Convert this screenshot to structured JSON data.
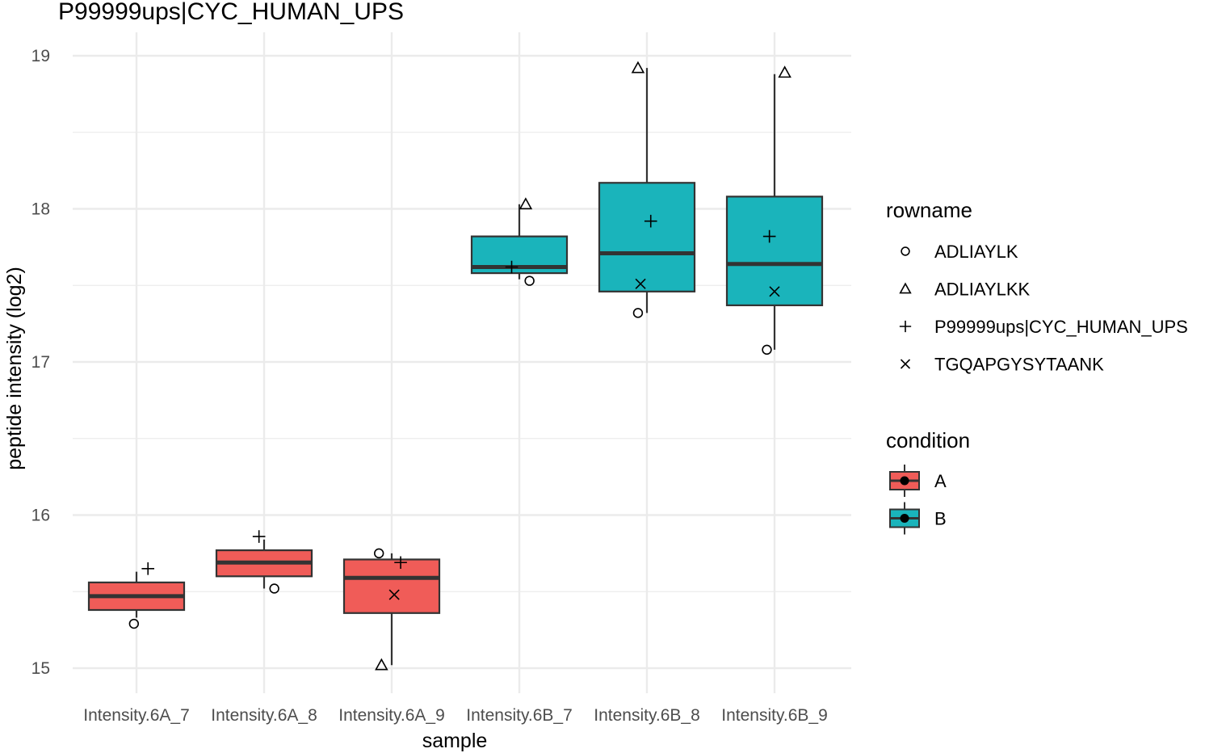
{
  "chart_data": {
    "type": "boxplot",
    "title": "P99999ups|CYC_HUMAN_UPS",
    "xlabel": "sample",
    "ylabel": "peptide intensity (log2)",
    "ylim": [
      14.77,
      19.3
    ],
    "yticks": [
      15,
      16,
      17,
      18,
      19
    ],
    "grid": true,
    "categories": [
      "Intensity.6A_7",
      "Intensity.6A_8",
      "Intensity.6A_9",
      "Intensity.6B_7",
      "Intensity.6B_8",
      "Intensity.6B_9"
    ],
    "boxes": [
      {
        "condition": "A",
        "min": 15.33,
        "q1": 15.38,
        "median": 15.47,
        "q3": 15.56,
        "max": 15.63
      },
      {
        "condition": "A",
        "min": 15.52,
        "q1": 15.6,
        "median": 15.69,
        "q3": 15.77,
        "max": 15.84
      },
      {
        "condition": "A",
        "min": 15.02,
        "q1": 15.36,
        "median": 15.59,
        "q3": 15.71,
        "max": 15.75
      },
      {
        "condition": "B",
        "min": 17.54,
        "q1": 17.58,
        "median": 17.62,
        "q3": 17.82,
        "max": 18.03
      },
      {
        "condition": "B",
        "min": 17.32,
        "q1": 17.46,
        "median": 17.71,
        "q3": 18.17,
        "max": 18.92
      },
      {
        "condition": "B",
        "min": 17.08,
        "q1": 17.37,
        "median": 17.64,
        "q3": 18.08,
        "max": 18.88
      }
    ],
    "series": [
      {
        "name": "ADLIAYLK",
        "shape": "circle",
        "values": [
          15.29,
          15.52,
          15.75,
          17.53,
          17.32,
          17.08
        ],
        "jitter": [
          -0.02,
          0.08,
          -0.1,
          0.08,
          -0.07,
          -0.06
        ]
      },
      {
        "name": "ADLIAYLKK",
        "shape": "triangle",
        "values": [
          null,
          null,
          15.02,
          18.03,
          18.92,
          18.89
        ],
        "jitter": [
          0,
          0,
          -0.08,
          0.05,
          -0.07,
          0.08
        ]
      },
      {
        "name": "P99999ups|CYC_HUMAN_UPS",
        "shape": "plus",
        "values": [
          15.65,
          15.86,
          15.69,
          17.62,
          17.92,
          17.82
        ],
        "jitter": [
          0.09,
          -0.04,
          0.07,
          -0.06,
          0.03,
          -0.04
        ]
      },
      {
        "name": "TGQAPGYSYTAANK",
        "shape": "cross",
        "values": [
          null,
          null,
          15.48,
          null,
          17.51,
          17.46
        ],
        "jitter": [
          0,
          0,
          0.02,
          0,
          -0.05,
          0.0
        ]
      }
    ],
    "legend": {
      "placement": "right",
      "rowname": {
        "title": "rowname",
        "items": [
          {
            "label": "ADLIAYLK",
            "shape": "circle"
          },
          {
            "label": "ADLIAYLKK",
            "shape": "triangle"
          },
          {
            "label": "P99999ups|CYC_HUMAN_UPS",
            "shape": "plus"
          },
          {
            "label": "TGQAPGYSYTAANK",
            "shape": "cross"
          }
        ]
      },
      "condition": {
        "title": "condition",
        "items": [
          {
            "label": "A",
            "color": "#F8766D"
          },
          {
            "label": "B",
            "color": "#00BFC4"
          }
        ]
      }
    },
    "colors": {
      "A": "#F05C58",
      "B": "#1AB4BB",
      "grid": "#EBEBEB",
      "outline": "#333333"
    }
  }
}
